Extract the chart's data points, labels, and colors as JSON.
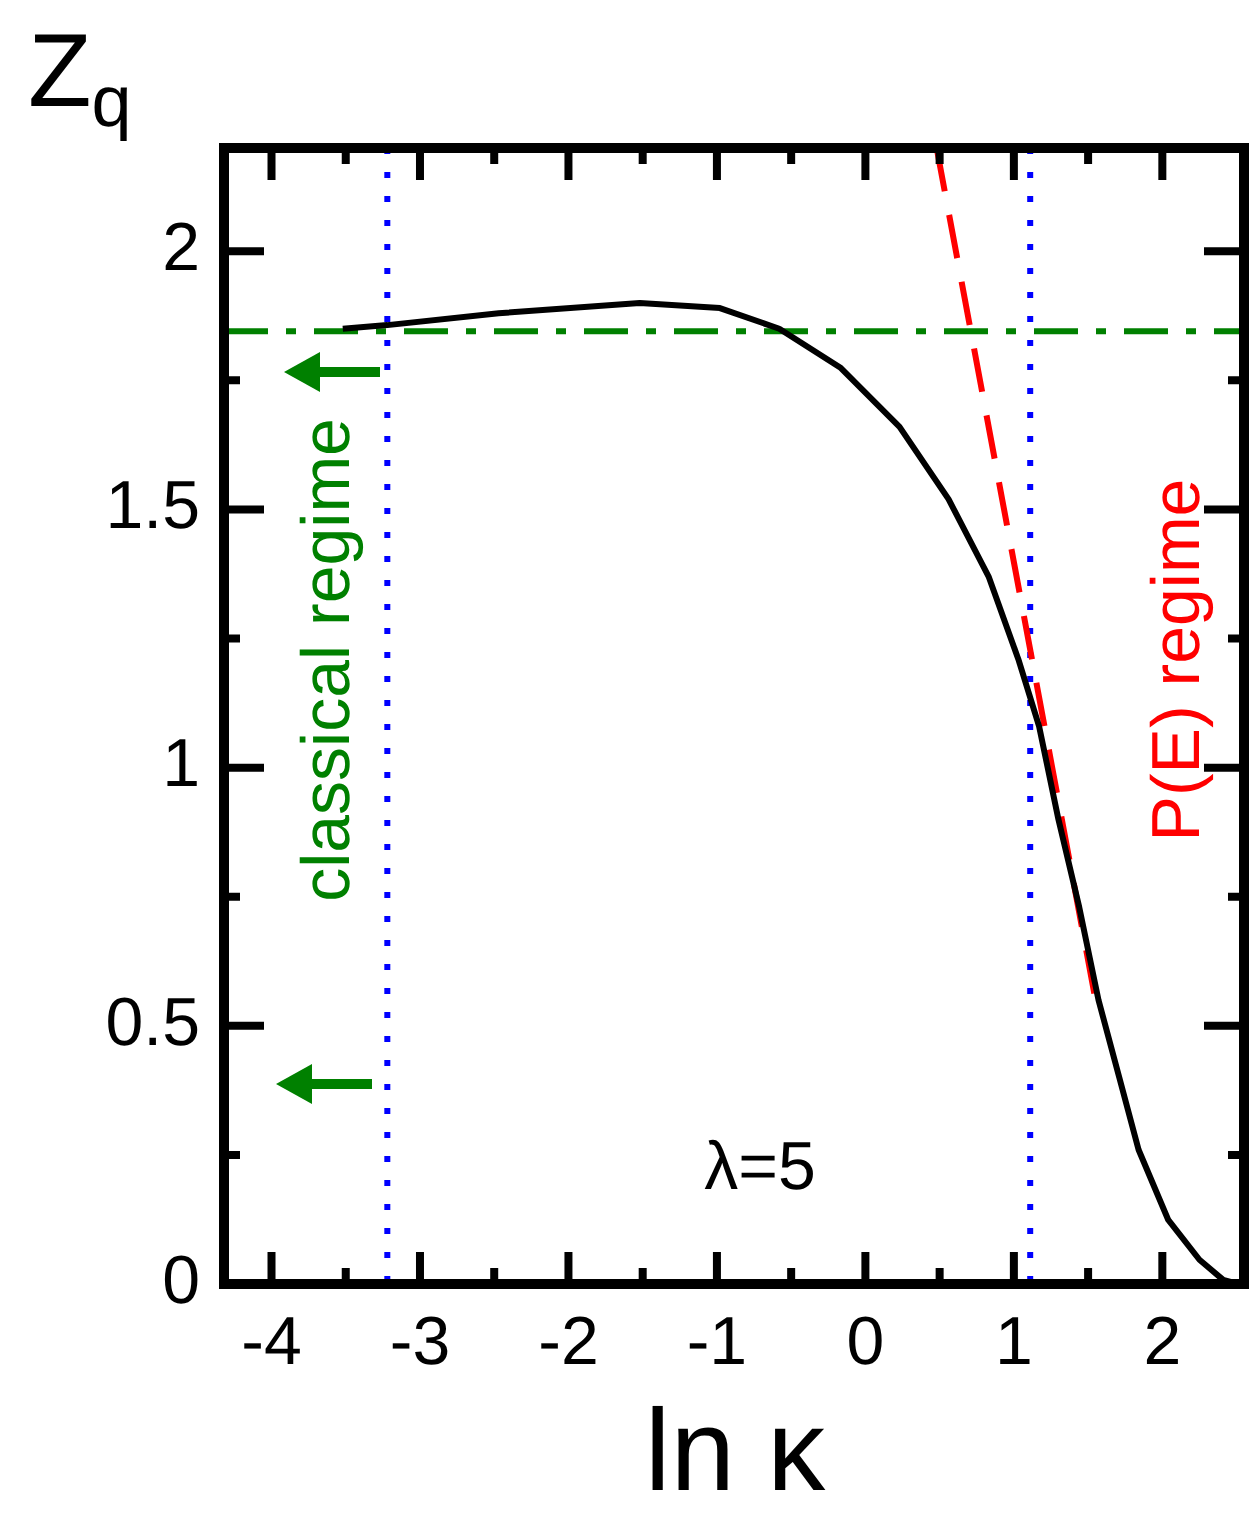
{
  "chart_data": {
    "type": "line",
    "xlabel": "ln κ",
    "ylabel": "Z$_{q}$",
    "xlim": [
      -4.32,
      2.55
    ],
    "ylim": [
      0,
      2.2
    ],
    "xticks": [
      -4,
      {
        "value": -3.5,
        "label": null
      },
      -3,
      {
        "value": -2.5,
        "label": null
      },
      -2,
      {
        "value": -1.5,
        "label": null
      },
      -1,
      {
        "value": -0.5,
        "label": null
      },
      0,
      {
        "value": 0.5,
        "label": null
      },
      1,
      {
        "value": 1.5,
        "label": null
      },
      2
    ],
    "yticks": [
      0,
      {
        "value": 0.25,
        "label": null
      },
      0.5,
      {
        "value": 0.75,
        "label": null
      },
      1,
      {
        "value": 1.25,
        "label": null
      },
      1.5,
      {
        "value": 1.75,
        "label": null
      },
      2
    ],
    "marker": "none",
    "legend": false,
    "series": [
      {
        "color": "#000000",
        "x": [
          -3.52,
          -3.22,
          -2.47,
          -1.52,
          -0.98,
          -0.58,
          -0.17,
          0.23,
          0.56,
          0.83,
          1.03,
          1.17,
          1.3,
          1.44,
          1.57,
          1.71,
          1.84,
          2.04,
          2.25,
          2.41,
          2.51
        ],
        "values": [
          1.85,
          1.857,
          1.88,
          1.9,
          1.89,
          1.85,
          1.775,
          1.66,
          1.52,
          1.37,
          1.21,
          1.08,
          0.9,
          0.73,
          0.55,
          0.4,
          0.26,
          0.124,
          0.047,
          0.008,
          0
        ]
      },
      {
        "color": "#ff0000",
        "line_style": "dashed",
        "x": [
          0.48,
          1.55
        ],
        "values": [
          2.2,
          0.55
        ]
      }
    ],
    "ref_lines": [
      {
        "axis": "x",
        "value": -3.22,
        "color": "#0000ff",
        "line_style": "dotted"
      },
      {
        "axis": "x",
        "value": 1.11,
        "color": "#0000ff",
        "line_style": "dotted"
      },
      {
        "axis": "y",
        "value": 1.845,
        "color": "#008000",
        "line_style": "dashdot"
      }
    ],
    "annotations": [
      "classical regime",
      "P(E) regime",
      "λ=5"
    ]
  }
}
